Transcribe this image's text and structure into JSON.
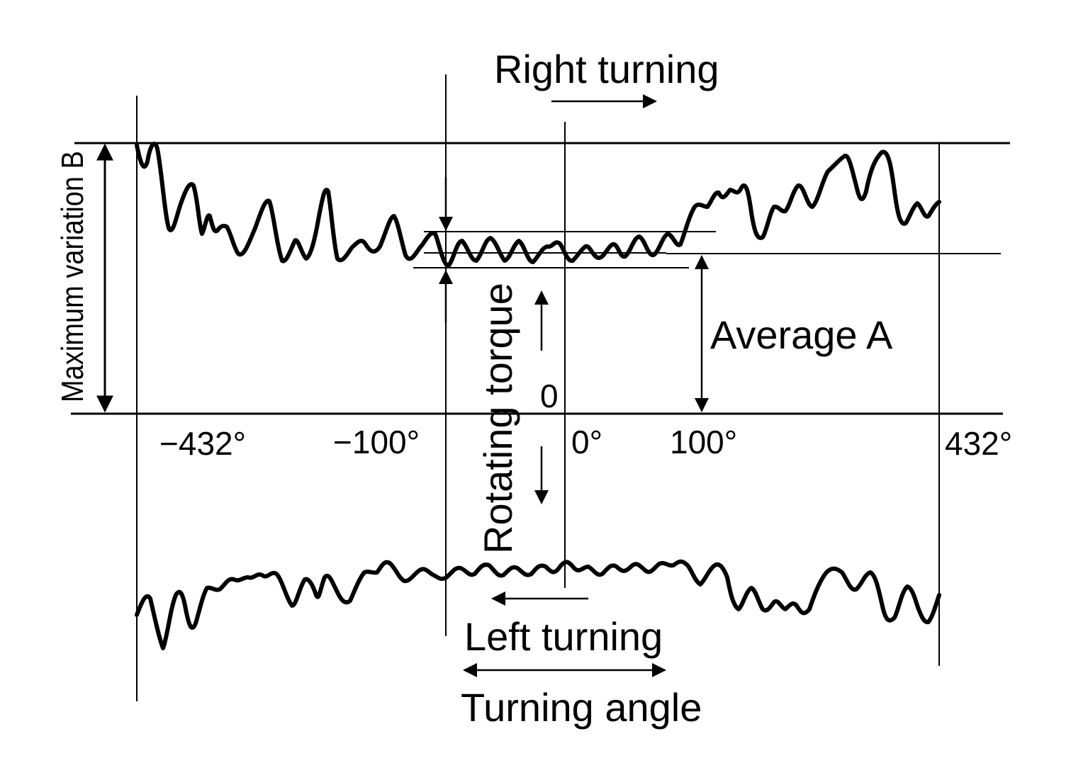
{
  "labels": {
    "right_turning": "Right turning",
    "left_turning": "Left turning",
    "turning_angle": "Turning angle",
    "rotating_torque": "Rotating torque",
    "average": "Average A",
    "max_variation": "Maximum variation B",
    "zero": "0"
  },
  "x_ticks": [
    "−432°",
    "−100°",
    "0°",
    "100°",
    "432°"
  ],
  "colors": {
    "ink": "#000000",
    "background": "#ffffff"
  }
}
